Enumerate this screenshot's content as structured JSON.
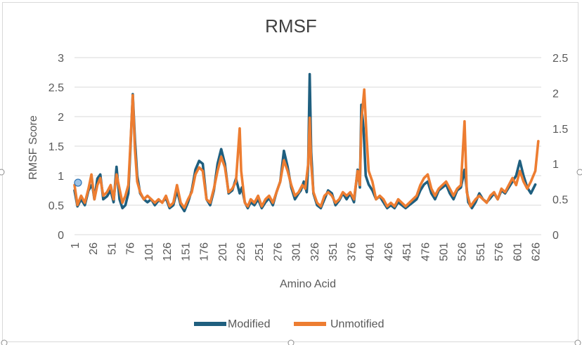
{
  "chart_data": {
    "type": "line",
    "title": "RMSF",
    "xlabel": "Amino Acid",
    "ylabel": "RMSF Score",
    "ylim": [
      0,
      3
    ],
    "y2lim": [
      0,
      2.5
    ],
    "yticks": [
      "0",
      "0.5",
      "1",
      "1.5",
      "2",
      "2.5",
      "3"
    ],
    "y2ticks": [
      "0",
      "0.5",
      "1",
      "1.5",
      "2",
      "2.5"
    ],
    "xlim": [
      1,
      634
    ],
    "xticks": [
      "1",
      "26",
      "51",
      "76",
      "101",
      "126",
      "151",
      "176",
      "201",
      "226",
      "251",
      "276",
      "301",
      "326",
      "351",
      "376",
      "401",
      "426",
      "451",
      "476",
      "501",
      "526",
      "551",
      "576",
      "601",
      "626"
    ],
    "grid": "horizontal",
    "legend_position": "bottom",
    "series": [
      {
        "name": "Modified",
        "axis": "left",
        "color": "#1f5f7f",
        "points": [
          [
            1,
            0.75
          ],
          [
            5,
            0.48
          ],
          [
            10,
            0.6
          ],
          [
            15,
            0.5
          ],
          [
            20,
            0.75
          ],
          [
            25,
            0.85
          ],
          [
            28,
            0.6
          ],
          [
            32,
            0.95
          ],
          [
            36,
            1.02
          ],
          [
            40,
            0.6
          ],
          [
            45,
            0.65
          ],
          [
            50,
            0.75
          ],
          [
            54,
            0.55
          ],
          [
            58,
            1.15
          ],
          [
            62,
            0.6
          ],
          [
            66,
            0.45
          ],
          [
            70,
            0.5
          ],
          [
            74,
            0.7
          ],
          [
            77,
            1.5
          ],
          [
            80,
            2.38
          ],
          [
            83,
            1.6
          ],
          [
            86,
            1.0
          ],
          [
            90,
            0.7
          ],
          [
            95,
            0.6
          ],
          [
            100,
            0.55
          ],
          [
            105,
            0.6
          ],
          [
            110,
            0.5
          ],
          [
            115,
            0.58
          ],
          [
            120,
            0.55
          ],
          [
            125,
            0.62
          ],
          [
            130,
            0.45
          ],
          [
            135,
            0.5
          ],
          [
            140,
            0.75
          ],
          [
            145,
            0.5
          ],
          [
            150,
            0.4
          ],
          [
            155,
            0.55
          ],
          [
            160,
            0.75
          ],
          [
            165,
            1.1
          ],
          [
            170,
            1.25
          ],
          [
            175,
            1.2
          ],
          [
            180,
            0.6
          ],
          [
            185,
            0.5
          ],
          [
            190,
            0.75
          ],
          [
            195,
            1.2
          ],
          [
            200,
            1.45
          ],
          [
            205,
            1.2
          ],
          [
            210,
            0.7
          ],
          [
            215,
            0.75
          ],
          [
            220,
            0.95
          ],
          [
            225,
            0.7
          ],
          [
            228,
            0.8
          ],
          [
            232,
            0.55
          ],
          [
            236,
            0.45
          ],
          [
            240,
            0.55
          ],
          [
            245,
            0.5
          ],
          [
            250,
            0.6
          ],
          [
            255,
            0.45
          ],
          [
            260,
            0.55
          ],
          [
            265,
            0.62
          ],
          [
            270,
            0.5
          ],
          [
            275,
            0.72
          ],
          [
            280,
            0.9
          ],
          [
            285,
            1.42
          ],
          [
            290,
            1.15
          ],
          [
            295,
            0.8
          ],
          [
            300,
            0.6
          ],
          [
            305,
            0.7
          ],
          [
            308,
            0.75
          ],
          [
            312,
            0.9
          ],
          [
            316,
            0.72
          ],
          [
            318,
            1.2
          ],
          [
            320,
            2.72
          ],
          [
            322,
            1.4
          ],
          [
            325,
            0.7
          ],
          [
            330,
            0.5
          ],
          [
            335,
            0.45
          ],
          [
            340,
            0.6
          ],
          [
            345,
            0.75
          ],
          [
            350,
            0.7
          ],
          [
            355,
            0.5
          ],
          [
            360,
            0.58
          ],
          [
            365,
            0.7
          ],
          [
            370,
            0.6
          ],
          [
            375,
            0.7
          ],
          [
            380,
            0.55
          ],
          [
            385,
            1.1
          ],
          [
            388,
            0.8
          ],
          [
            390,
            2.2
          ],
          [
            393,
            1.8
          ],
          [
            396,
            1.0
          ],
          [
            400,
            0.85
          ],
          [
            405,
            0.75
          ],
          [
            410,
            0.6
          ],
          [
            415,
            0.65
          ],
          [
            420,
            0.55
          ],
          [
            425,
            0.45
          ],
          [
            430,
            0.5
          ],
          [
            435,
            0.45
          ],
          [
            440,
            0.55
          ],
          [
            445,
            0.5
          ],
          [
            450,
            0.45
          ],
          [
            455,
            0.5
          ],
          [
            460,
            0.55
          ],
          [
            465,
            0.6
          ],
          [
            470,
            0.75
          ],
          [
            475,
            0.85
          ],
          [
            480,
            0.9
          ],
          [
            485,
            0.7
          ],
          [
            490,
            0.6
          ],
          [
            495,
            0.75
          ],
          [
            500,
            0.8
          ],
          [
            505,
            0.85
          ],
          [
            510,
            0.7
          ],
          [
            515,
            0.6
          ],
          [
            520,
            0.75
          ],
          [
            525,
            0.8
          ],
          [
            530,
            1.1
          ],
          [
            535,
            0.55
          ],
          [
            540,
            0.45
          ],
          [
            545,
            0.55
          ],
          [
            550,
            0.7
          ],
          [
            555,
            0.6
          ],
          [
            560,
            0.55
          ],
          [
            565,
            0.62
          ],
          [
            570,
            0.7
          ],
          [
            575,
            0.6
          ],
          [
            580,
            0.75
          ],
          [
            585,
            0.7
          ],
          [
            590,
            0.8
          ],
          [
            595,
            0.9
          ],
          [
            600,
            1.0
          ],
          [
            605,
            1.25
          ],
          [
            610,
            1.0
          ],
          [
            615,
            0.8
          ],
          [
            620,
            0.7
          ],
          [
            626,
            0.85
          ]
        ]
      },
      {
        "name": "Unmotified",
        "axis": "right",
        "color": "#ed7d31",
        "points": [
          [
            1,
            0.7
          ],
          [
            5,
            0.42
          ],
          [
            10,
            0.55
          ],
          [
            15,
            0.45
          ],
          [
            20,
            0.65
          ],
          [
            24,
            0.85
          ],
          [
            28,
            0.5
          ],
          [
            32,
            0.7
          ],
          [
            36,
            0.8
          ],
          [
            40,
            0.55
          ],
          [
            45,
            0.6
          ],
          [
            50,
            0.7
          ],
          [
            54,
            0.5
          ],
          [
            58,
            0.85
          ],
          [
            62,
            0.65
          ],
          [
            66,
            0.45
          ],
          [
            70,
            0.55
          ],
          [
            74,
            0.7
          ],
          [
            77,
            1.3
          ],
          [
            80,
            1.97
          ],
          [
            83,
            1.2
          ],
          [
            86,
            0.75
          ],
          [
            90,
            0.6
          ],
          [
            95,
            0.5
          ],
          [
            100,
            0.55
          ],
          [
            105,
            0.5
          ],
          [
            110,
            0.45
          ],
          [
            115,
            0.5
          ],
          [
            120,
            0.45
          ],
          [
            125,
            0.55
          ],
          [
            130,
            0.4
          ],
          [
            135,
            0.45
          ],
          [
            140,
            0.7
          ],
          [
            145,
            0.45
          ],
          [
            150,
            0.38
          ],
          [
            155,
            0.5
          ],
          [
            160,
            0.6
          ],
          [
            165,
            0.85
          ],
          [
            170,
            0.95
          ],
          [
            175,
            0.9
          ],
          [
            180,
            0.5
          ],
          [
            185,
            0.45
          ],
          [
            190,
            0.65
          ],
          [
            195,
            0.9
          ],
          [
            200,
            1.1
          ],
          [
            205,
            0.95
          ],
          [
            210,
            0.6
          ],
          [
            215,
            0.65
          ],
          [
            220,
            0.75
          ],
          [
            225,
            1.5
          ],
          [
            227,
            0.9
          ],
          [
            232,
            0.45
          ],
          [
            236,
            0.4
          ],
          [
            240,
            0.5
          ],
          [
            245,
            0.45
          ],
          [
            250,
            0.55
          ],
          [
            255,
            0.4
          ],
          [
            260,
            0.5
          ],
          [
            265,
            0.55
          ],
          [
            270,
            0.45
          ],
          [
            275,
            0.6
          ],
          [
            280,
            0.75
          ],
          [
            285,
            1.05
          ],
          [
            290,
            0.9
          ],
          [
            295,
            0.7
          ],
          [
            300,
            0.55
          ],
          [
            305,
            0.6
          ],
          [
            310,
            0.7
          ],
          [
            314,
            0.65
          ],
          [
            318,
            1.0
          ],
          [
            320,
            1.65
          ],
          [
            322,
            1.0
          ],
          [
            325,
            0.6
          ],
          [
            330,
            0.45
          ],
          [
            335,
            0.4
          ],
          [
            340,
            0.55
          ],
          [
            345,
            0.6
          ],
          [
            350,
            0.55
          ],
          [
            355,
            0.45
          ],
          [
            360,
            0.5
          ],
          [
            365,
            0.6
          ],
          [
            370,
            0.55
          ],
          [
            375,
            0.6
          ],
          [
            380,
            0.5
          ],
          [
            385,
            0.9
          ],
          [
            388,
            0.7
          ],
          [
            390,
            1.6
          ],
          [
            394,
            2.05
          ],
          [
            397,
            1.4
          ],
          [
            400,
            0.9
          ],
          [
            405,
            0.75
          ],
          [
            410,
            0.5
          ],
          [
            415,
            0.55
          ],
          [
            420,
            0.5
          ],
          [
            425,
            0.4
          ],
          [
            430,
            0.45
          ],
          [
            435,
            0.4
          ],
          [
            440,
            0.5
          ],
          [
            445,
            0.45
          ],
          [
            450,
            0.4
          ],
          [
            455,
            0.45
          ],
          [
            460,
            0.5
          ],
          [
            465,
            0.55
          ],
          [
            470,
            0.7
          ],
          [
            475,
            0.8
          ],
          [
            480,
            0.85
          ],
          [
            485,
            0.65
          ],
          [
            490,
            0.55
          ],
          [
            495,
            0.65
          ],
          [
            500,
            0.7
          ],
          [
            505,
            0.75
          ],
          [
            510,
            0.65
          ],
          [
            515,
            0.55
          ],
          [
            520,
            0.65
          ],
          [
            525,
            0.7
          ],
          [
            530,
            1.6
          ],
          [
            533,
            0.6
          ],
          [
            538,
            0.4
          ],
          [
            545,
            0.5
          ],
          [
            550,
            0.55
          ],
          [
            555,
            0.5
          ],
          [
            560,
            0.45
          ],
          [
            565,
            0.55
          ],
          [
            570,
            0.6
          ],
          [
            575,
            0.5
          ],
          [
            580,
            0.65
          ],
          [
            585,
            0.6
          ],
          [
            590,
            0.7
          ],
          [
            595,
            0.8
          ],
          [
            600,
            0.7
          ],
          [
            605,
            0.9
          ],
          [
            610,
            0.75
          ],
          [
            615,
            0.65
          ],
          [
            620,
            0.75
          ],
          [
            626,
            0.9
          ],
          [
            630,
            1.32
          ]
        ]
      }
    ]
  }
}
